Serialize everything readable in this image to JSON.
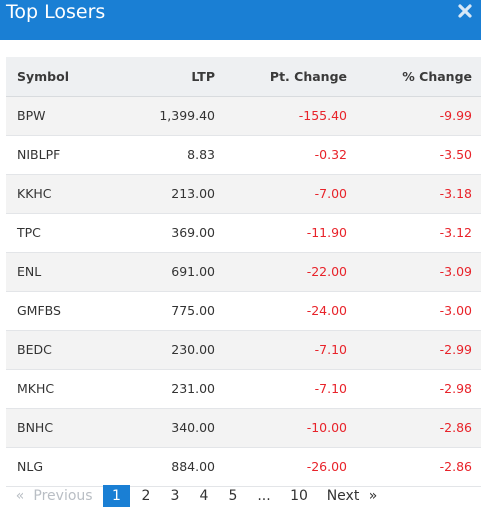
{
  "header": {
    "title": "Top Losers",
    "close_icon": "close-icon"
  },
  "table": {
    "columns": [
      "Symbol",
      "LTP",
      "Pt. Change",
      "% Change"
    ],
    "rows": [
      {
        "symbol": "BPW",
        "ltp": "1,399.40",
        "pt_change": "-155.40",
        "pct_change": "-9.99"
      },
      {
        "symbol": "NIBLPF",
        "ltp": "8.83",
        "pt_change": "-0.32",
        "pct_change": "-3.50"
      },
      {
        "symbol": "KKHC",
        "ltp": "213.00",
        "pt_change": "-7.00",
        "pct_change": "-3.18"
      },
      {
        "symbol": "TPC",
        "ltp": "369.00",
        "pt_change": "-11.90",
        "pct_change": "-3.12"
      },
      {
        "symbol": "ENL",
        "ltp": "691.00",
        "pt_change": "-22.00",
        "pct_change": "-3.09"
      },
      {
        "symbol": "GMFBS",
        "ltp": "775.00",
        "pt_change": "-24.00",
        "pct_change": "-3.00"
      },
      {
        "symbol": "BEDC",
        "ltp": "230.00",
        "pt_change": "-7.10",
        "pct_change": "-2.99"
      },
      {
        "symbol": "MKHC",
        "ltp": "231.00",
        "pt_change": "-7.10",
        "pct_change": "-2.98"
      },
      {
        "symbol": "BNHC",
        "ltp": "340.00",
        "pt_change": "-10.00",
        "pct_change": "-2.86"
      },
      {
        "symbol": "NLG",
        "ltp": "884.00",
        "pt_change": "-26.00",
        "pct_change": "-2.86"
      }
    ]
  },
  "pagination": {
    "first": "«",
    "previous": "Previous",
    "pages": [
      "1",
      "2",
      "3",
      "4",
      "5"
    ],
    "ellipsis": "...",
    "last_page": "10",
    "next": "Next",
    "last": "»",
    "current": "1"
  },
  "colors": {
    "header_bg": "#1a7fd4",
    "negative": "#e8232a",
    "active_page_bg": "#1a7fd4"
  }
}
